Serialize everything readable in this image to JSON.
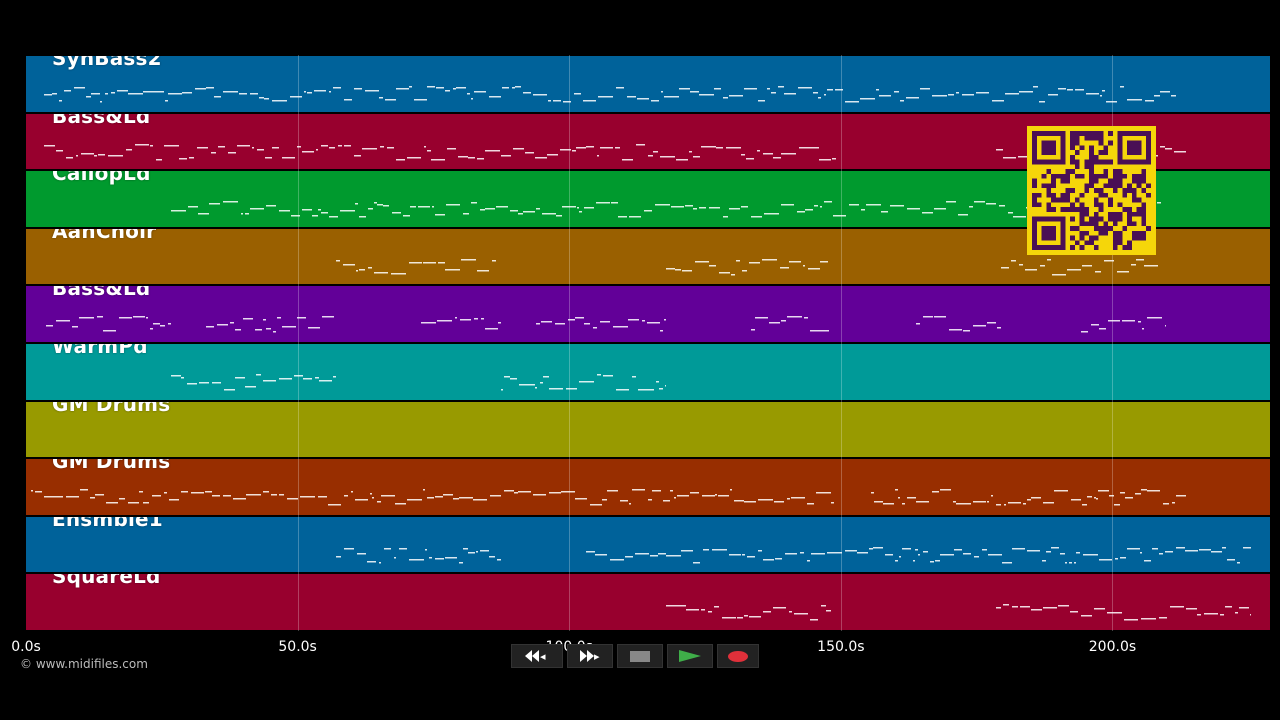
{
  "tracks": [
    {
      "name": "SynBass2",
      "color": "#00629a"
    },
    {
      "name": "Bass&Ld",
      "color": "#98002e"
    },
    {
      "name": "CaliopLd",
      "color": "#009a2e"
    },
    {
      "name": "AahChoir",
      "color": "#9a6000"
    },
    {
      "name": "Bass&Ld",
      "color": "#620098"
    },
    {
      "name": "WarmPd",
      "color": "#009a98"
    },
    {
      "name": "GM Drums",
      "color": "#989a00"
    },
    {
      "name": "GM Drums",
      "color": "#982e00"
    },
    {
      "name": "Ensmble1",
      "color": "#00629a"
    },
    {
      "name": "SquareLd",
      "color": "#98002e"
    }
  ],
  "timeline": {
    "ticks": [
      "0.0s",
      "50.0s",
      "100.0s",
      "150.0s",
      "200.0s"
    ],
    "tick_values": [
      0,
      50,
      100,
      150,
      200
    ],
    "max_seconds": 229
  },
  "copyright": "© www.midifiles.com",
  "transport": {
    "rewind_icon": "rewind-icon",
    "fast_forward_icon": "fast-forward-icon",
    "stop_icon": "stop-icon",
    "play_icon": "play-icon",
    "record_icon": "record-icon",
    "play_color": "#3fae49",
    "record_color": "#e0303a"
  },
  "qr_code_icon": "qr-code-icon"
}
